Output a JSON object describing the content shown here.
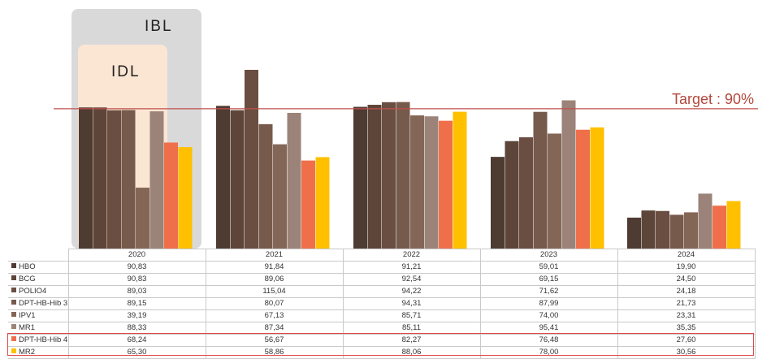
{
  "bands": {
    "outer_label": "IBL",
    "inner_label": "IDL",
    "outer_color": "#d9d9d9",
    "inner_color": "#fbe6d4"
  },
  "target": {
    "label": "Target : 90%",
    "value": 90,
    "color": "#c0504d"
  },
  "chart_data": {
    "type": "bar",
    "categories": [
      "2020",
      "2021",
      "2022",
      "2023",
      "2024"
    ],
    "ylim": [
      0,
      160
    ],
    "series": [
      {
        "name": "HBO",
        "color": "#4e3b32",
        "values": [
          90.83,
          91.84,
          91.21,
          59.01,
          19.9
        ]
      },
      {
        "name": "BCG",
        "color": "#5d4539",
        "values": [
          90.83,
          89.06,
          92.54,
          69.15,
          24.5
        ]
      },
      {
        "name": "POLIO4",
        "color": "#6a4e41",
        "values": [
          89.03,
          115.04,
          94.22,
          71.62,
          24.18
        ]
      },
      {
        "name": "DPT-HB-Hib 3",
        "color": "#765a4c",
        "values": [
          89.15,
          80.07,
          94.31,
          87.99,
          21.73
        ]
      },
      {
        "name": "IPV1",
        "color": "#846657",
        "values": [
          39.19,
          67.13,
          85.71,
          74.0,
          23.31
        ]
      },
      {
        "name": "MR1",
        "color": "#9b8379",
        "values": [
          88.33,
          87.34,
          85.11,
          95.41,
          35.35
        ]
      },
      {
        "name": "DPT-HB-Hib 4",
        "color": "#ef6f4a",
        "values": [
          68.24,
          56.67,
          82.27,
          76.48,
          27.6
        ]
      },
      {
        "name": "MR2",
        "color": "#ffc000",
        "values": [
          65.3,
          58.86,
          88.06,
          78.0,
          30.56
        ]
      }
    ],
    "table_values": [
      [
        "90,83",
        "91,84",
        "91,21",
        "59,01",
        "19,90"
      ],
      [
        "90,83",
        "89,06",
        "92,54",
        "69,15",
        "24,50"
      ],
      [
        "89,03",
        "115,04",
        "94,22",
        "71,62",
        "24,18"
      ],
      [
        "89,15",
        "80,07",
        "94,31",
        "87,99",
        "21,73"
      ],
      [
        "39,19",
        "67,13",
        "85,71",
        "74,00",
        "23,31"
      ],
      [
        "88,33",
        "87,34",
        "85,11",
        "95,41",
        "35,35"
      ],
      [
        "68,24",
        "56,67",
        "82,27",
        "76,48",
        "27,60"
      ],
      [
        "65,30",
        "58,86",
        "88,06",
        "78,00",
        "30,56"
      ]
    ],
    "highlighted_series": [
      "DPT-HB-Hib 4",
      "MR2"
    ]
  }
}
